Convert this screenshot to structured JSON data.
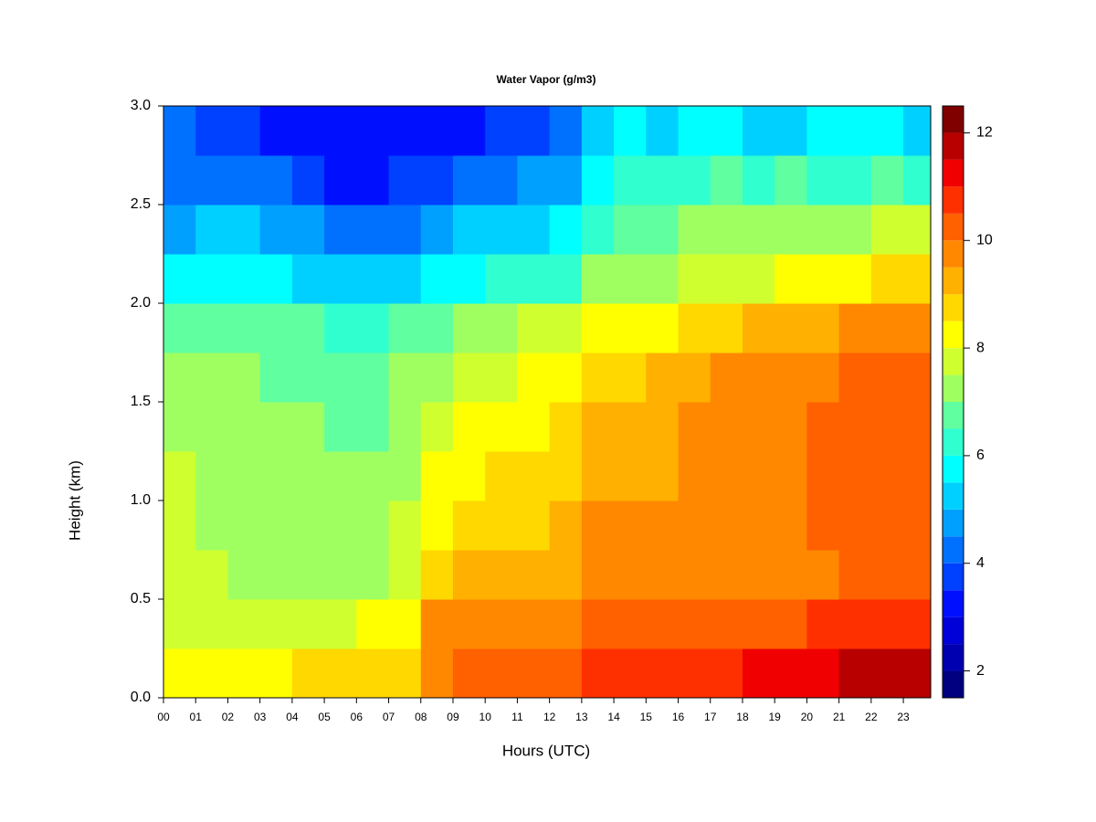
{
  "chart_data": {
    "type": "heatmap",
    "title": "Water Vapor (g/m3)",
    "xlabel": "Hours (UTC)",
    "ylabel": "Height (km)",
    "x": [
      0.5,
      1.5,
      2.5,
      3.5,
      4.5,
      5.5,
      6.5,
      7.5,
      8.5,
      9.5,
      10.5,
      11.5,
      12.5,
      13.5,
      14.5,
      15.5,
      16.5,
      17.5,
      18.5,
      19.5,
      20.5,
      21.5,
      22.5,
      23.5
    ],
    "y": [
      0.125,
      0.375,
      0.625,
      0.875,
      1.125,
      1.375,
      1.625,
      1.875,
      2.125,
      2.375,
      2.625,
      2.875
    ],
    "values": [
      [
        8.0,
        8.3,
        8.3,
        8.3,
        8.8,
        8.8,
        8.9,
        8.7,
        9.5,
        10.0,
        10.3,
        10.3,
        10.3,
        10.5,
        10.8,
        10.8,
        10.8,
        10.7,
        11.0,
        11.3,
        11.4,
        11.8,
        11.8,
        11.7
      ],
      [
        7.8,
        7.8,
        7.8,
        7.8,
        7.8,
        7.9,
        8.0,
        8.2,
        9.5,
        9.7,
        9.8,
        9.9,
        9.9,
        10.2,
        10.3,
        10.3,
        10.3,
        10.2,
        10.2,
        10.3,
        10.5,
        10.8,
        10.8,
        10.6
      ],
      [
        7.6,
        7.5,
        7.4,
        7.4,
        7.4,
        7.4,
        7.3,
        7.8,
        8.7,
        9.0,
        9.2,
        9.2,
        9.3,
        9.5,
        9.7,
        9.6,
        9.8,
        9.7,
        9.5,
        9.7,
        9.8,
        10.2,
        10.2,
        10.0
      ],
      [
        7.6,
        7.4,
        7.3,
        7.3,
        7.3,
        7.3,
        7.2,
        7.6,
        8.3,
        8.6,
        8.8,
        8.9,
        9.0,
        9.5,
        9.6,
        9.5,
        9.7,
        9.7,
        9.7,
        9.8,
        10.0,
        10.3,
        10.3,
        10.1
      ],
      [
        7.6,
        7.4,
        7.3,
        7.2,
        7.2,
        7.1,
        7.0,
        7.4,
        8.1,
        8.4,
        8.5,
        8.6,
        8.8,
        9.2,
        9.4,
        9.4,
        9.7,
        9.7,
        9.7,
        9.8,
        10.0,
        10.2,
        10.2,
        10.0
      ],
      [
        7.4,
        7.3,
        7.2,
        7.0,
        7.0,
        6.9,
        6.8,
        7.2,
        7.8,
        8.0,
        8.2,
        8.4,
        8.6,
        9.0,
        9.2,
        9.2,
        9.5,
        9.6,
        9.7,
        9.8,
        10.0,
        10.2,
        10.2,
        10.0
      ],
      [
        7.2,
        7.2,
        7.0,
        6.9,
        6.8,
        6.7,
        6.6,
        7.0,
        7.4,
        7.6,
        7.8,
        8.0,
        8.2,
        8.8,
        8.9,
        9.0,
        9.3,
        9.5,
        9.6,
        9.8,
        9.9,
        10.1,
        10.2,
        10.0
      ],
      [
        6.8,
        6.8,
        6.6,
        6.5,
        6.5,
        6.3,
        6.3,
        6.6,
        6.9,
        7.0,
        7.2,
        7.5,
        7.6,
        8.2,
        8.3,
        8.4,
        8.6,
        8.8,
        9.0,
        9.2,
        9.3,
        9.5,
        9.6,
        9.5
      ],
      [
        5.7,
        5.8,
        5.8,
        5.6,
        5.4,
        5.0,
        5.0,
        5.4,
        5.6,
        5.9,
        6.0,
        6.1,
        6.4,
        7.0,
        7.3,
        7.3,
        7.5,
        7.8,
        7.8,
        8.0,
        8.0,
        8.3,
        8.5,
        8.5
      ],
      [
        4.9,
        5.0,
        5.0,
        4.9,
        4.6,
        4.1,
        4.2,
        4.4,
        4.6,
        5.0,
        5.2,
        5.4,
        5.6,
        6.3,
        6.8,
        6.8,
        7.0,
        7.2,
        7.2,
        7.4,
        7.2,
        7.4,
        7.6,
        7.5
      ],
      [
        4.3,
        4.3,
        4.3,
        4.1,
        3.7,
        3.3,
        3.4,
        3.6,
        3.6,
        4.1,
        4.3,
        4.5,
        4.8,
        5.7,
        6.0,
        6.0,
        6.3,
        6.5,
        6.2,
        6.5,
        6.2,
        6.3,
        6.6,
        6.4
      ],
      [
        4.0,
        3.8,
        3.6,
        3.4,
        3.3,
        3.0,
        3.0,
        3.1,
        3.0,
        3.3,
        3.6,
        3.9,
        4.2,
        5.0,
        5.5,
        5.3,
        5.5,
        5.5,
        5.0,
        5.2,
        5.5,
        5.8,
        5.6,
        5.2
      ]
    ],
    "xlim": [
      0,
      23.85
    ],
    "ylim": [
      0,
      3
    ],
    "xticks": [
      {
        "value": 0,
        "label": "00"
      },
      {
        "value": 1,
        "label": "01"
      },
      {
        "value": 2,
        "label": "02"
      },
      {
        "value": 3,
        "label": "03"
      },
      {
        "value": 4,
        "label": "04"
      },
      {
        "value": 5,
        "label": "05"
      },
      {
        "value": 6,
        "label": "06"
      },
      {
        "value": 7,
        "label": "07"
      },
      {
        "value": 8,
        "label": "08"
      },
      {
        "value": 9,
        "label": "09"
      },
      10,
      11,
      12,
      13,
      14,
      15,
      16,
      17,
      18,
      19,
      20,
      21,
      22,
      23
    ],
    "yticks": [
      {
        "value": 0,
        "label": "0.0"
      },
      0.5,
      {
        "value": 1,
        "label": "1.0"
      },
      1.5,
      {
        "value": 2,
        "label": "2.0"
      },
      2.5,
      {
        "value": 3,
        "label": "3.0"
      }
    ],
    "colorbar": {
      "levels": [
        1.5,
        2,
        2.5,
        3,
        3.5,
        4,
        4.5,
        5,
        5.5,
        6,
        6.5,
        7,
        7.5,
        8,
        8.5,
        9,
        9.5,
        10,
        10.5,
        11,
        11.5,
        12,
        12.5
      ],
      "colors": [
        "#000080",
        "#0000b0",
        "#0000d8",
        "#0010ff",
        "#0040ff",
        "#0070ff",
        "#00a0ff",
        "#00d0ff",
        "#00ffff",
        "#30ffd0",
        "#60ffa0",
        "#a0ff60",
        "#d0ff30",
        "#ffff00",
        "#ffd800",
        "#ffb000",
        "#ff8800",
        "#ff6000",
        "#ff3000",
        "#f00000",
        "#b80000",
        "#800000"
      ],
      "ticks": [
        2,
        4,
        6,
        8,
        10,
        12
      ]
    }
  }
}
